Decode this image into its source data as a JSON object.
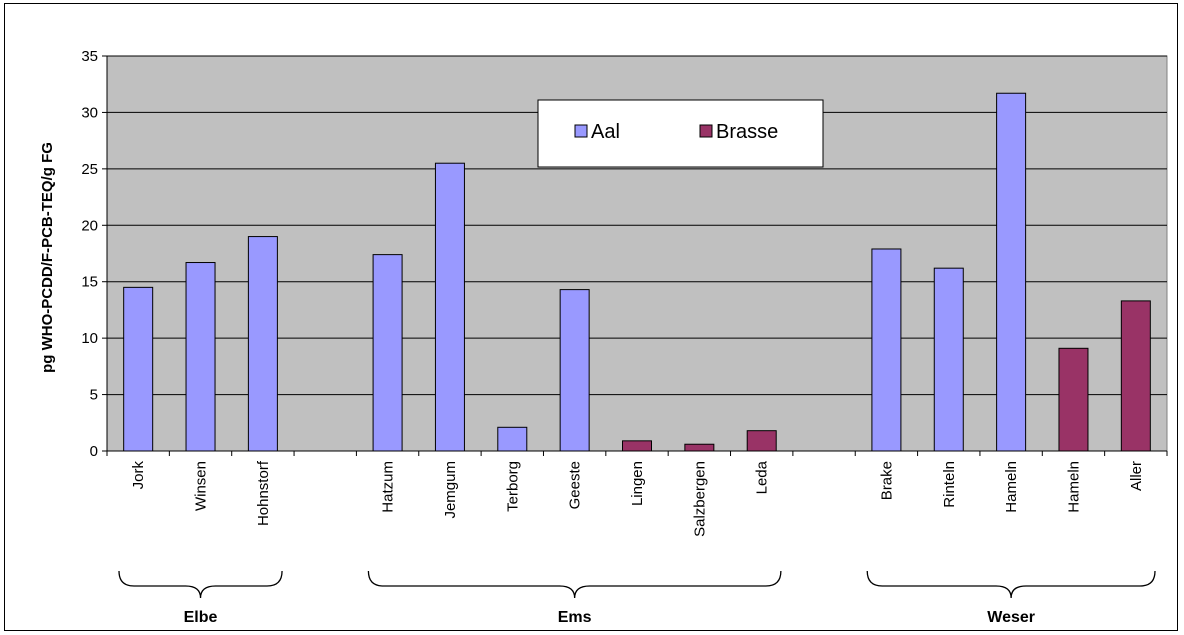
{
  "chart_data": {
    "type": "bar",
    "ylabel": "pg WHO-PCDD/F-PCB-TEQ/g FG",
    "ylim": [
      0,
      35
    ],
    "yticks": [
      0,
      5,
      10,
      15,
      20,
      25,
      30,
      35
    ],
    "grid": true,
    "legend_position": "top-center",
    "categories": [
      "Jork",
      "Winsen",
      "Hohnstorf",
      "",
      "Hatzum",
      "Jemgum",
      "Terborg",
      "Geeste",
      "Lingen",
      "Salzbergen",
      "Leda",
      "",
      "Brake",
      "Rinteln",
      "Hameln",
      "Hameln",
      "Aller"
    ],
    "series": [
      {
        "name": "Aal",
        "color": "#9999ff",
        "values": [
          14.5,
          16.7,
          19.0,
          null,
          17.4,
          25.5,
          2.1,
          14.3,
          null,
          null,
          null,
          null,
          17.9,
          16.2,
          31.7,
          null,
          null
        ]
      },
      {
        "name": "Brasse",
        "color": "#993366",
        "values": [
          null,
          null,
          null,
          null,
          null,
          null,
          null,
          null,
          0.9,
          0.6,
          1.8,
          null,
          null,
          null,
          null,
          9.1,
          13.3
        ]
      }
    ],
    "groups": [
      {
        "label": "Elbe",
        "from": 0,
        "to": 2
      },
      {
        "label": "Ems",
        "from": 4,
        "to": 10
      },
      {
        "label": "Weser",
        "from": 12,
        "to": 16
      }
    ],
    "plot_background": "#c0c0c0"
  }
}
